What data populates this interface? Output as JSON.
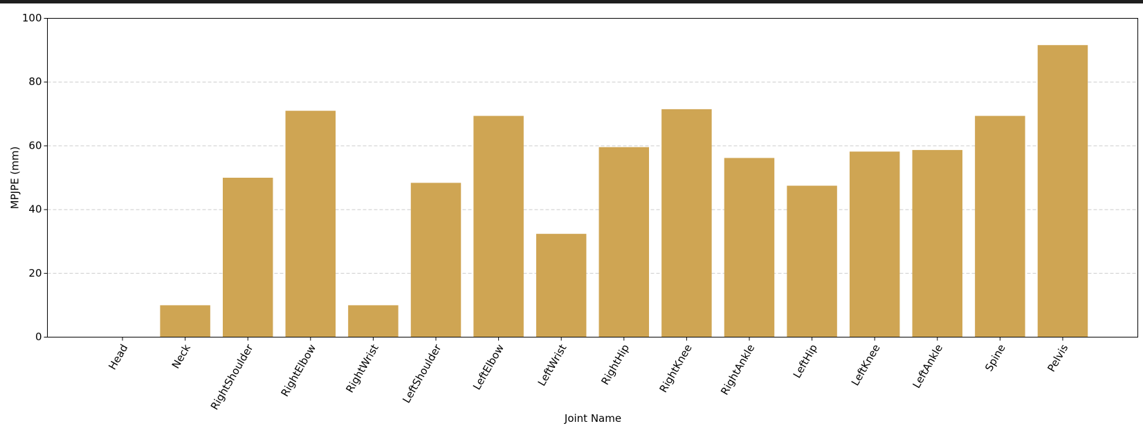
{
  "chart_data": {
    "type": "bar",
    "xlabel": "Joint Name",
    "ylabel": "MPJPE (mm)",
    "categories": [
      "Head",
      "Neck",
      "RightShoulder",
      "RightElbow",
      "RightWrist",
      "LeftShoulder",
      "LeftElbow",
      "LeftWrist",
      "RightHip",
      "RightKnee",
      "RightAnkle",
      "LeftHip",
      "LeftKnee",
      "LeftAnkle",
      "Spine",
      "Pelvis"
    ],
    "values": [
      0,
      10,
      50,
      71,
      10,
      48.4,
      69.4,
      32.4,
      59.6,
      71.5,
      56.2,
      47.5,
      58.2,
      58.7,
      69.4,
      91.6
    ],
    "color": "#cfa553",
    "ylim": [
      0,
      100
    ],
    "yticks": [
      0,
      20,
      40,
      60,
      80,
      100
    ],
    "grid": true
  }
}
